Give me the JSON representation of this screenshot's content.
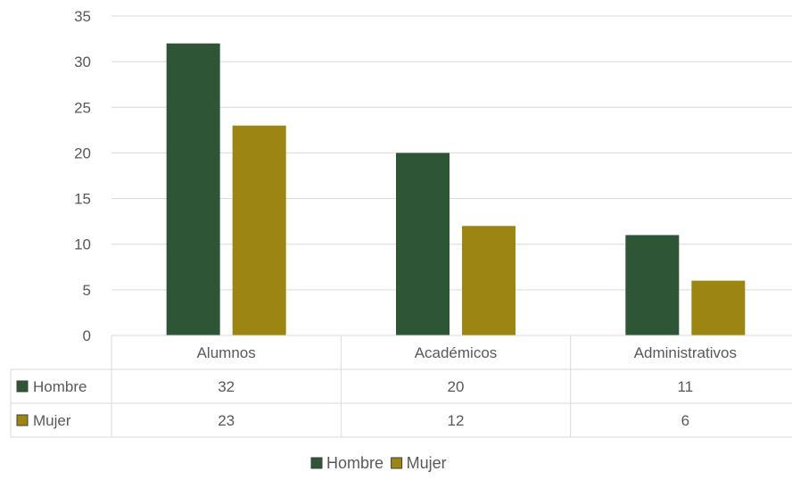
{
  "chart_data": {
    "type": "bar",
    "categories": [
      "Alumnos",
      "Académicos",
      "Administrativos"
    ],
    "series": [
      {
        "name": "Hombre",
        "values": [
          32,
          20,
          11
        ],
        "color": "#2e5535"
      },
      {
        "name": "Mujer",
        "values": [
          23,
          12,
          6
        ],
        "color": "#9c8512"
      }
    ],
    "ylim": [
      0,
      35
    ],
    "yticks": [
      0,
      5,
      10,
      15,
      20,
      25,
      30,
      35
    ],
    "grid": true,
    "legend_position": "bottom",
    "data_table": true
  }
}
